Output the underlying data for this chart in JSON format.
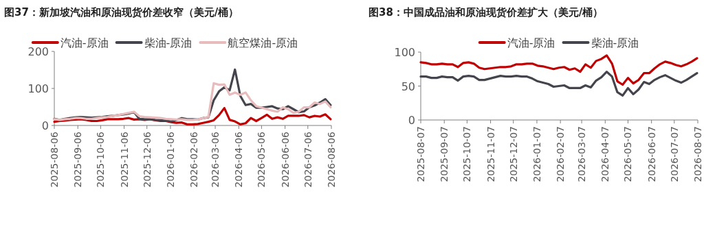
{
  "chart_data": [
    {
      "type": "line",
      "title": "图37：新加坡汽油和原油现货价差收窄（美元/桶）",
      "legend": "top",
      "grid": false,
      "x": [
        "2025-08-06",
        "2025-08-13",
        "2025-08-20",
        "2025-08-27",
        "2025-09-03",
        "2025-09-10",
        "2025-09-17",
        "2025-09-24",
        "2025-10-01",
        "2025-10-08",
        "2025-10-15",
        "2025-10-22",
        "2025-10-29",
        "2025-11-05",
        "2025-11-12",
        "2025-11-19",
        "2025-11-26",
        "2025-12-03",
        "2025-12-10",
        "2025-12-17",
        "2025-12-24",
        "2025-12-31",
        "2026-01-07",
        "2026-01-14",
        "2026-01-21",
        "2026-01-28",
        "2026-02-04",
        "2026-02-11",
        "2026-02-18",
        "2026-02-25",
        "2026-03-04",
        "2026-03-11",
        "2026-03-18",
        "2026-03-25",
        "2026-04-01",
        "2026-04-08",
        "2026-04-15",
        "2026-04-22",
        "2026-04-29",
        "2026-05-06",
        "2026-05-13",
        "2026-05-20",
        "2026-05-27",
        "2026-06-03",
        "2026-06-10",
        "2026-06-17",
        "2026-06-24",
        "2026-07-01",
        "2026-07-08",
        "2026-07-15",
        "2026-07-22",
        "2026-07-29",
        "2026-08-05"
      ],
      "xlim": [
        "2025-08-06",
        "2026-08-06"
      ],
      "xticks": [
        "2025-08-06",
        "2025-09-06",
        "2025-10-06",
        "2025-11-06",
        "2025-12-06",
        "2026-01-06",
        "2026-02-06",
        "2026-03-06",
        "2026-04-06",
        "2026-05-06",
        "2026-06-06",
        "2026-07-06",
        "2026-08-06"
      ],
      "ylim": [
        0,
        200
      ],
      "yticks": [
        0,
        100,
        200
      ],
      "series": [
        {
          "name": "汽油-原油",
          "color": "#c00000",
          "values": [
            10,
            12,
            13,
            15,
            16,
            17,
            15,
            12,
            12,
            14,
            17,
            17,
            17,
            18,
            20,
            16,
            17,
            15,
            17,
            14,
            12,
            12,
            9,
            7,
            8,
            3,
            3,
            4,
            7,
            10,
            14,
            28,
            47,
            15,
            11,
            3,
            6,
            20,
            12,
            20,
            29,
            18,
            22,
            18,
            26,
            26,
            26,
            28,
            22,
            26,
            24,
            30,
            17
          ]
        },
        {
          "name": "柴油-原油",
          "color": "#44444c",
          "values": [
            18,
            15,
            18,
            20,
            22,
            23,
            22,
            21,
            22,
            23,
            25,
            26,
            28,
            30,
            32,
            36,
            18,
            17,
            17,
            15,
            14,
            13,
            11,
            15,
            20,
            17,
            17,
            16,
            20,
            22,
            68,
            92,
            103,
            95,
            151,
            80,
            55,
            58,
            48,
            48,
            50,
            52,
            46,
            44,
            52,
            44,
            36,
            38,
            49,
            54,
            62,
            71,
            55
          ]
        },
        {
          "name": "航空煤油-原油",
          "color": "#e8bcbc",
          "values": [
            17,
            15,
            17,
            18,
            20,
            20,
            18,
            18,
            20,
            22,
            23,
            26,
            28,
            31,
            34,
            37,
            25,
            23,
            22,
            21,
            20,
            18,
            17,
            16,
            17,
            15,
            15,
            16,
            20,
            23,
            114,
            110,
            111,
            83,
            89,
            83,
            89,
            68,
            52,
            48,
            44,
            40,
            37,
            49,
            44,
            34,
            37,
            49,
            49,
            62,
            58,
            65,
            49
          ]
        }
      ]
    },
    {
      "type": "line",
      "title": "图38：中国成品油和原油现货价差扩大（美元/桶）",
      "legend": "top",
      "grid": false,
      "x": [
        "2025-08-07",
        "2025-08-14",
        "2025-08-21",
        "2025-08-28",
        "2025-09-04",
        "2025-09-11",
        "2025-09-18",
        "2025-09-25",
        "2025-10-02",
        "2025-10-09",
        "2025-10-16",
        "2025-10-23",
        "2025-10-30",
        "2025-11-06",
        "2025-11-13",
        "2025-11-20",
        "2025-11-27",
        "2025-12-04",
        "2025-12-11",
        "2025-12-18",
        "2025-12-25",
        "2026-01-01",
        "2026-01-08",
        "2026-01-15",
        "2026-01-22",
        "2026-01-29",
        "2026-02-05",
        "2026-02-12",
        "2026-02-19",
        "2026-02-26",
        "2026-03-05",
        "2026-03-12",
        "2026-03-19",
        "2026-03-26",
        "2026-04-02",
        "2026-04-09",
        "2026-04-16",
        "2026-04-23",
        "2026-04-30",
        "2026-05-07",
        "2026-05-14",
        "2026-05-21",
        "2026-05-28",
        "2026-06-04",
        "2026-06-11",
        "2026-06-18",
        "2026-06-25",
        "2026-07-02",
        "2026-07-09",
        "2026-07-16",
        "2026-07-23",
        "2026-07-30",
        "2026-08-06"
      ],
      "xlim": [
        "2025-08-07",
        "2026-08-07"
      ],
      "xticks": [
        "2025-08-07",
        "2025-09-07",
        "2025-10-07",
        "2025-11-07",
        "2025-12-07",
        "2026-01-07",
        "2026-02-07",
        "2026-03-07",
        "2026-04-07",
        "2026-05-07",
        "2026-06-07",
        "2026-07-07",
        "2026-08-07"
      ],
      "ylim": [
        0,
        100
      ],
      "yticks": [
        0,
        50,
        100
      ],
      "series": [
        {
          "name": "汽油-原油",
          "color": "#c00000",
          "values": [
            85,
            84,
            82,
            82,
            83,
            82,
            82,
            78,
            84,
            85,
            83,
            77,
            75,
            76,
            77,
            78,
            78,
            79,
            82,
            82,
            83,
            83,
            80,
            79,
            77,
            75,
            77,
            78,
            74,
            76,
            71,
            82,
            77,
            87,
            90,
            95,
            83,
            57,
            52,
            62,
            54,
            59,
            69,
            69,
            76,
            82,
            86,
            84,
            81,
            79,
            82,
            86,
            91
          ]
        },
        {
          "name": "柴油-原油",
          "color": "#44444c",
          "values": [
            64,
            64,
            62,
            62,
            64,
            63,
            63,
            58,
            64,
            65,
            64,
            59,
            59,
            61,
            63,
            65,
            64,
            64,
            65,
            64,
            64,
            61,
            57,
            55,
            53,
            49,
            50,
            51,
            47,
            47,
            47,
            51,
            48,
            58,
            63,
            71,
            64,
            41,
            36,
            47,
            38,
            45,
            56,
            53,
            59,
            63,
            66,
            62,
            58,
            55,
            59,
            64,
            69
          ]
        }
      ]
    }
  ]
}
